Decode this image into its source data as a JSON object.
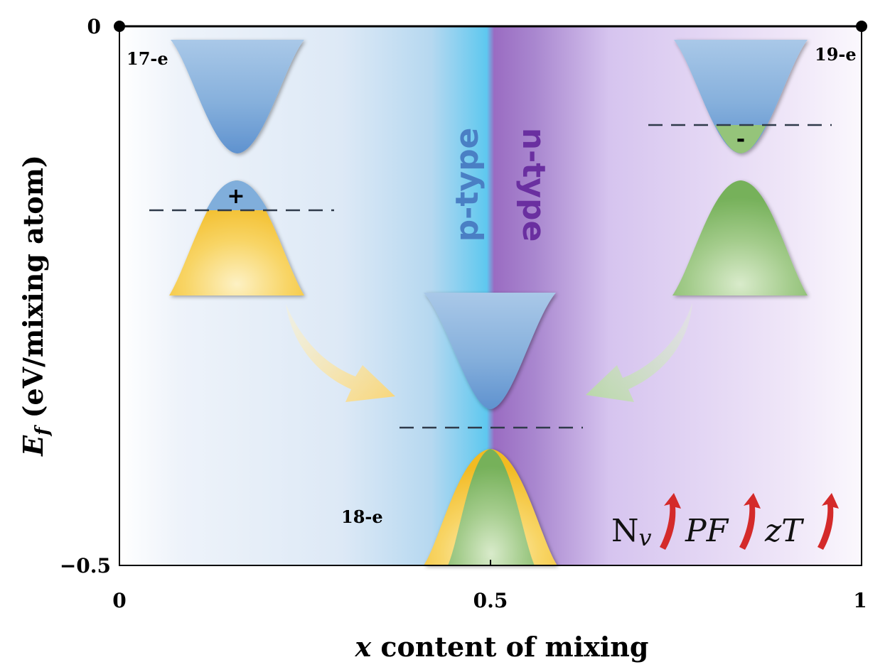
{
  "axes": {
    "y_title_main": "E",
    "y_title_sub": "f",
    "y_title_rest": " (eV/mixing atom)",
    "x_title_var": "x",
    "x_title_rest": " content of mixing",
    "x_ticks": [
      "0",
      "0.5",
      "1"
    ],
    "y_ticks": [
      "0",
      "−0.5"
    ]
  },
  "regions": {
    "left": "p-type",
    "right": "n-type"
  },
  "bands": {
    "left_label": "17-e",
    "right_label": "19-e",
    "center_label": "18-e",
    "hole_symbol": "+",
    "electron_symbol": "-"
  },
  "figure_of_merit": {
    "nv_main": "N",
    "nv_sub": "v",
    "pf": "PF",
    "zt": "zT"
  },
  "colors": {
    "p_type_blue": "#4a7fc4",
    "n_type_purple": "#6a2fa0",
    "conduction_blue": "#7aa8d8",
    "valence_yellow": "#f5c63a",
    "valence_green": "#7bb55f",
    "arrow_red": "#d42a2a",
    "fermi_dash": "#2f3a4a"
  }
}
